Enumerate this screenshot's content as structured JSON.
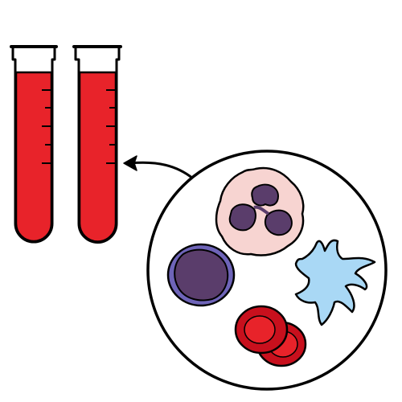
{
  "colors": {
    "blood": "#e8232a",
    "outline": "#000000",
    "background": "#ffffff",
    "neutrophil_cytoplasm": "#f7d4d1",
    "nucleus": "#5a3d6b",
    "lymphocyte_rim": "#6e64b8",
    "platelet": "#a9d8f5",
    "red_cell": "#c8101d"
  },
  "tubes": [
    {
      "name": "test-tube-1"
    },
    {
      "name": "test-tube-2"
    }
  ],
  "magnifier": {
    "cells": [
      "neutrophil",
      "lymphocyte",
      "platelet",
      "red-blood-cells"
    ]
  },
  "icons": [
    "test-tube-icon",
    "arrow-icon",
    "magnifier-circle"
  ]
}
